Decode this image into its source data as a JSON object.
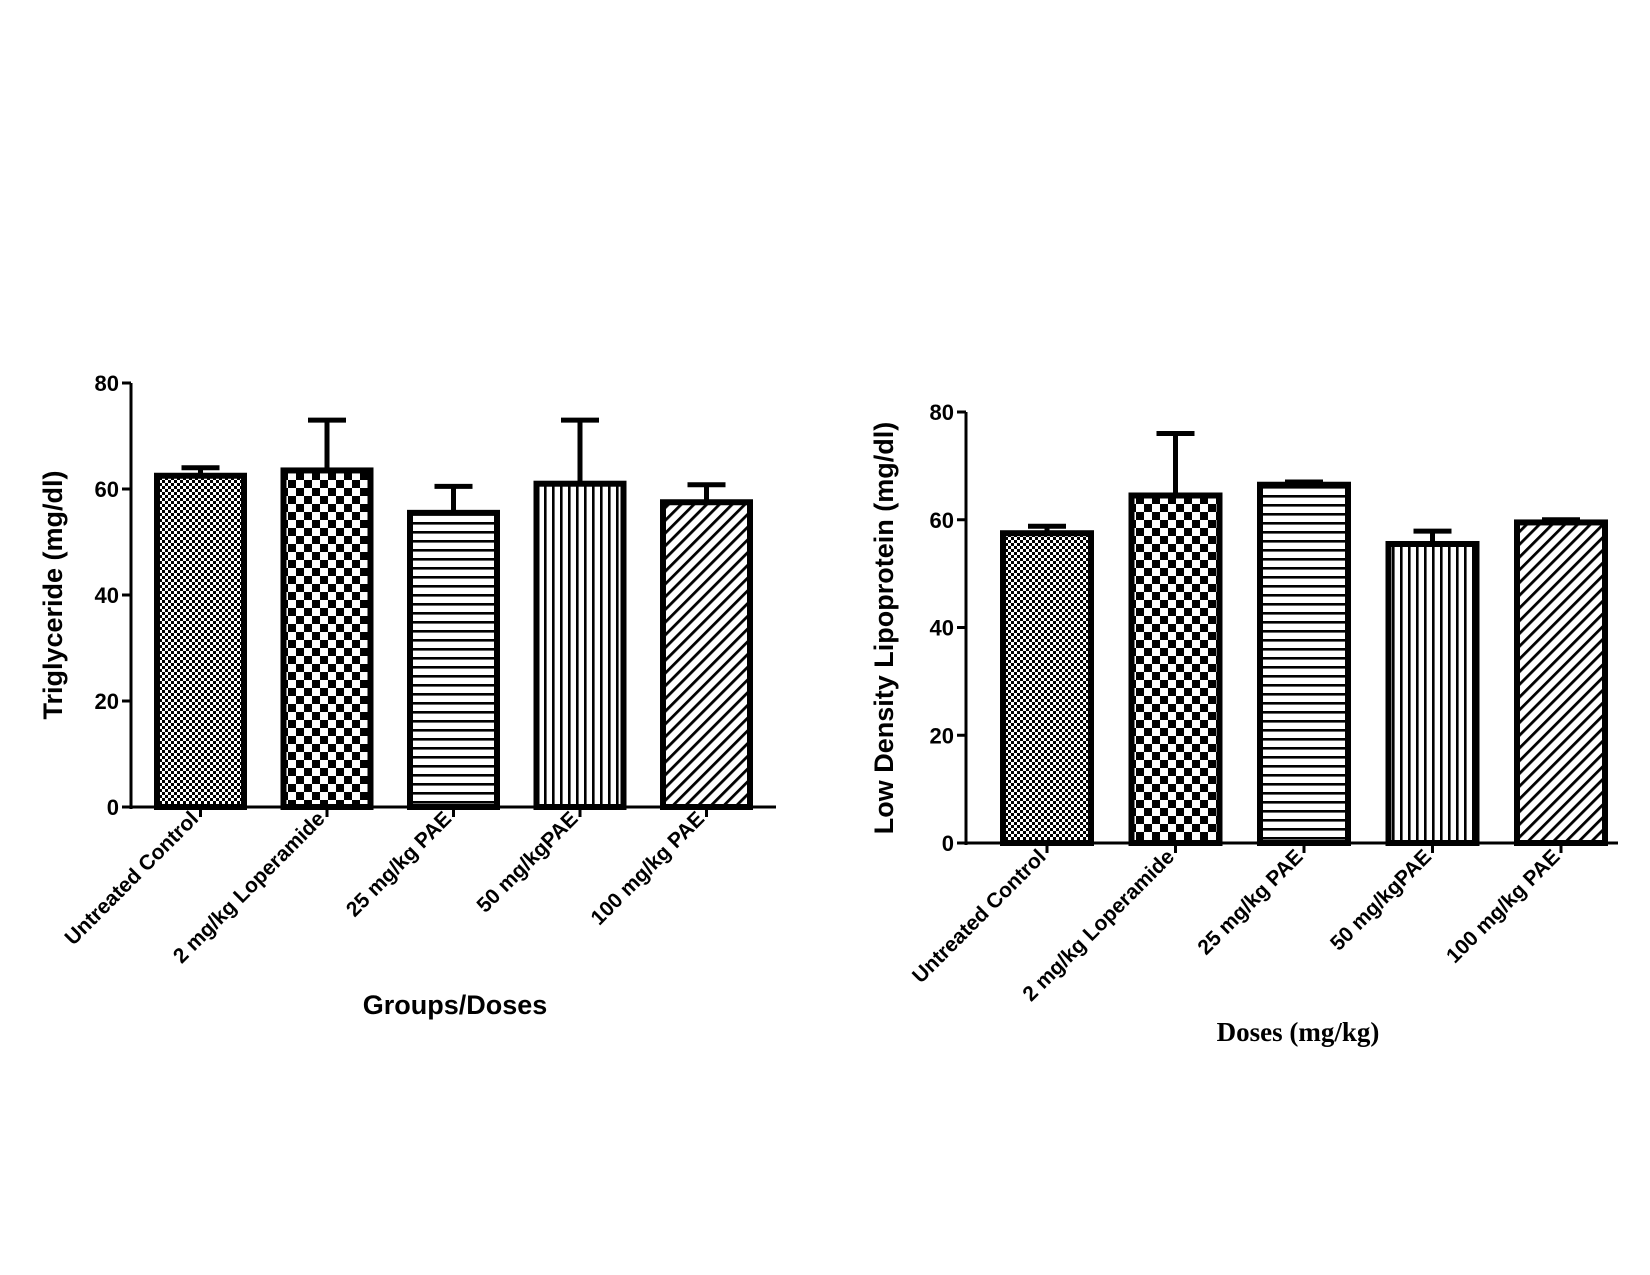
{
  "chart_data": [
    {
      "type": "bar",
      "title": "",
      "xlabel": "Groups/Doses",
      "ylabel": "Triglyceride (mg/dl)",
      "categories": [
        "Untreated Control",
        "2 mg/kg Loperamide",
        "25 mg/kg PAE",
        "50 mg/kg PAE",
        "100 mg/kg PAE"
      ],
      "category_labels": [
        "Untreated Control",
        "2 mg/kg Loperamide",
        "25 mg/kg PAE",
        "50 mg/kgPAE",
        "100 mg/kg PAE"
      ],
      "values": [
        62.5,
        63.5,
        55.5,
        61.0,
        57.5
      ],
      "errors": [
        1.5,
        9.5,
        5.0,
        12.0,
        3.3
      ],
      "patterns": [
        "dots",
        "checker",
        "hlines",
        "vlines",
        "diagonal"
      ],
      "ylim": [
        0,
        80
      ],
      "yticks": [
        0,
        20,
        40,
        60,
        80
      ],
      "grid": false,
      "legend": "none"
    },
    {
      "type": "bar",
      "title": "",
      "xlabel": "Doses (mg/kg)",
      "ylabel": "Low Density Lipoprotein (mg/dl)",
      "categories": [
        "Untreated Control",
        "2 mg/kg Loperamide",
        "25 mg/kg PAE",
        "50 mg/kg PAE",
        "100 mg/kg PAE"
      ],
      "category_labels": [
        "Untreated Control",
        "2 mg/kg Loperamide",
        "25 mg/kg PAE",
        "50 mg/kgPAE",
        "100 mg/kg PAE"
      ],
      "values": [
        57.5,
        64.5,
        66.5,
        55.5,
        59.5
      ],
      "errors": [
        1.3,
        11.5,
        0.5,
        2.4,
        0.5
      ],
      "patterns": [
        "dots",
        "checker",
        "hlines",
        "vlines",
        "diagonal"
      ],
      "ylim": [
        0,
        80
      ],
      "yticks": [
        0,
        20,
        40,
        60,
        80
      ],
      "grid": false,
      "legend": "none"
    }
  ]
}
